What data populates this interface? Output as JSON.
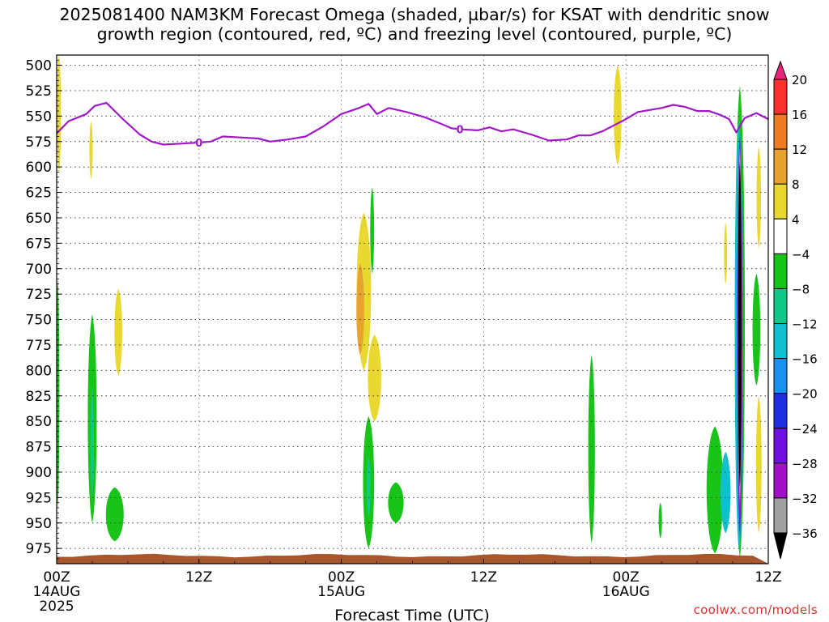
{
  "title_line1": "2025081400 NAM3KM Forecast Omega (shaded, µbar/s) for KSAT with dendritic snow",
  "title_line2": "growth region (contoured, red, ºC) and freezing level (contoured, purple, ºC)",
  "credit": "coolwx.com/models",
  "chart_data": {
    "type": "heatmap",
    "xlabel": "Forecast Time (UTC)",
    "x_unit": "forecast hour from 2025-08-14 00Z",
    "xlim": [
      0,
      60
    ],
    "x_ticks": [
      {
        "hour": 0,
        "label": "00Z",
        "sub1": "14AUG",
        "sub2": "2025"
      },
      {
        "hour": 12,
        "label": "12Z",
        "sub1": "",
        "sub2": ""
      },
      {
        "hour": 24,
        "label": "00Z",
        "sub1": "15AUG",
        "sub2": ""
      },
      {
        "hour": 36,
        "label": "12Z",
        "sub1": "",
        "sub2": ""
      },
      {
        "hour": 48,
        "label": "00Z",
        "sub1": "16AUG",
        "sub2": ""
      },
      {
        "hour": 60,
        "label": "12Z",
        "sub1": "",
        "sub2": ""
      }
    ],
    "y_unit": "hPa",
    "ylim": [
      990,
      490
    ],
    "y_ticks": [
      500,
      525,
      550,
      575,
      600,
      625,
      650,
      675,
      700,
      725,
      750,
      775,
      800,
      825,
      850,
      875,
      900,
      925,
      950,
      975
    ],
    "grid": true,
    "colorbar": {
      "labels": [
        20,
        16,
        12,
        8,
        4,
        -4,
        -8,
        -12,
        -16,
        -20,
        -24,
        -28,
        -32,
        -36
      ],
      "bins": [
        {
          "min": 20,
          "max": 24,
          "color": "#e8237b"
        },
        {
          "min": 16,
          "max": 20,
          "color": "#ff3030"
        },
        {
          "min": 12,
          "max": 16,
          "color": "#ee7a22"
        },
        {
          "min": 8,
          "max": 12,
          "color": "#e8a32e"
        },
        {
          "min": 4,
          "max": 8,
          "color": "#e8d830"
        },
        {
          "min": -4,
          "max": 4,
          "color": "#ffffff"
        },
        {
          "min": -8,
          "max": -4,
          "color": "#18c418"
        },
        {
          "min": -12,
          "max": -8,
          "color": "#10c888"
        },
        {
          "min": -16,
          "max": -12,
          "color": "#10c0d0"
        },
        {
          "min": -20,
          "max": -16,
          "color": "#1a90f0"
        },
        {
          "min": -24,
          "max": -20,
          "color": "#2030e0"
        },
        {
          "min": -28,
          "max": -24,
          "color": "#7010e0"
        },
        {
          "min": -32,
          "max": -28,
          "color": "#a010c8"
        },
        {
          "min": -36,
          "max": -32,
          "color": "#a0a0a0"
        },
        {
          "min": -40,
          "max": -36,
          "color": "#000000"
        }
      ]
    },
    "omega_regions": [
      {
        "value": 6,
        "t": 0.2,
        "p_top": 490,
        "p_bot": 605,
        "w": 0.35
      },
      {
        "value": 6,
        "t": 2.9,
        "p_top": 555,
        "p_bot": 612,
        "w": 0.3
      },
      {
        "value": 6,
        "t": 5.2,
        "p_top": 720,
        "p_bot": 805,
        "w": 0.7
      },
      {
        "value": -6,
        "t": 0.1,
        "p_top": 710,
        "p_bot": 935,
        "w": 0.25
      },
      {
        "value": -6,
        "t": 3.0,
        "p_top": 745,
        "p_bot": 950,
        "w": 0.8
      },
      {
        "value": -6,
        "t": 4.9,
        "p_top": 915,
        "p_bot": 968,
        "w": 1.6
      },
      {
        "value": -10,
        "t": 3.0,
        "p_top": 815,
        "p_bot": 925,
        "w": 0.3
      },
      {
        "value": 6,
        "t": 25.9,
        "p_top": 645,
        "p_bot": 800,
        "w": 1.3
      },
      {
        "value": 6,
        "t": 26.8,
        "p_top": 765,
        "p_bot": 850,
        "w": 1.2
      },
      {
        "value": 10,
        "t": 25.6,
        "p_top": 695,
        "p_bot": 785,
        "w": 0.7
      },
      {
        "value": -6,
        "t": 26.6,
        "p_top": 620,
        "p_bot": 705,
        "w": 0.35
      },
      {
        "value": -6,
        "t": 26.3,
        "p_top": 845,
        "p_bot": 975,
        "w": 1.0
      },
      {
        "value": -6,
        "t": 28.6,
        "p_top": 910,
        "p_bot": 950,
        "w": 1.4
      },
      {
        "value": -10,
        "t": 26.3,
        "p_top": 885,
        "p_bot": 945,
        "w": 0.35
      },
      {
        "value": 6,
        "t": 47.3,
        "p_top": 500,
        "p_bot": 598,
        "w": 0.7
      },
      {
        "value": -6,
        "t": 45.1,
        "p_top": 785,
        "p_bot": 970,
        "w": 0.6
      },
      {
        "value": -6,
        "t": 50.9,
        "p_top": 930,
        "p_bot": 965,
        "w": 0.3
      },
      {
        "value": -6,
        "t": 57.6,
        "p_top": 520,
        "p_bot": 985,
        "w": 0.9
      },
      {
        "value": -6,
        "t": 55.5,
        "p_top": 855,
        "p_bot": 980,
        "w": 1.5
      },
      {
        "value": -6,
        "t": 59.0,
        "p_top": 705,
        "p_bot": 815,
        "w": 0.7
      },
      {
        "value": 6,
        "t": 56.4,
        "p_top": 655,
        "p_bot": 715,
        "w": 0.25
      },
      {
        "value": 6,
        "t": 59.2,
        "p_top": 580,
        "p_bot": 680,
        "w": 0.4
      },
      {
        "value": 6,
        "t": 59.2,
        "p_top": 825,
        "p_bot": 960,
        "w": 0.5
      },
      {
        "value": -14,
        "t": 57.5,
        "p_top": 555,
        "p_bot": 975,
        "w": 0.7
      },
      {
        "value": -14,
        "t": 56.4,
        "p_top": 880,
        "p_bot": 960,
        "w": 0.9
      },
      {
        "value": -18,
        "t": 57.6,
        "p_top": 565,
        "p_bot": 970,
        "w": 0.55
      },
      {
        "value": -26,
        "t": 57.6,
        "p_top": 570,
        "p_bot": 960,
        "w": 0.5
      },
      {
        "value": -30,
        "t": 57.6,
        "p_top": 575,
        "p_bot": 955,
        "w": 0.45
      },
      {
        "value": -34,
        "t": 57.6,
        "p_top": 580,
        "p_bot": 930,
        "w": 0.4
      },
      {
        "value": -38,
        "t": 57.6,
        "p_top": 595,
        "p_bot": 915,
        "w": 0.33
      }
    ],
    "freezing_level": {
      "label": "0",
      "label_points": [
        {
          "t": 12.0,
          "p": 576
        },
        {
          "t": 34.0,
          "p": 563
        }
      ],
      "points": [
        {
          "t": 0,
          "p": 567
        },
        {
          "t": 1,
          "p": 555
        },
        {
          "t": 2.5,
          "p": 548
        },
        {
          "t": 3.2,
          "p": 540
        },
        {
          "t": 4.2,
          "p": 537
        },
        {
          "t": 5.5,
          "p": 552
        },
        {
          "t": 7,
          "p": 568
        },
        {
          "t": 8,
          "p": 575
        },
        {
          "t": 9,
          "p": 578
        },
        {
          "t": 10.5,
          "p": 577
        },
        {
          "t": 12,
          "p": 576
        },
        {
          "t": 13,
          "p": 575
        },
        {
          "t": 14,
          "p": 570
        },
        {
          "t": 15.5,
          "p": 571
        },
        {
          "t": 17,
          "p": 572
        },
        {
          "t": 18,
          "p": 575
        },
        {
          "t": 19.5,
          "p": 573
        },
        {
          "t": 21,
          "p": 570
        },
        {
          "t": 22.5,
          "p": 560
        },
        {
          "t": 24,
          "p": 548
        },
        {
          "t": 25.5,
          "p": 542
        },
        {
          "t": 26.3,
          "p": 538
        },
        {
          "t": 27.0,
          "p": 548
        },
        {
          "t": 28,
          "p": 542
        },
        {
          "t": 29.5,
          "p": 546
        },
        {
          "t": 31,
          "p": 551
        },
        {
          "t": 32.5,
          "p": 558
        },
        {
          "t": 33.3,
          "p": 562
        },
        {
          "t": 34,
          "p": 563
        },
        {
          "t": 35.5,
          "p": 564
        },
        {
          "t": 36.5,
          "p": 561
        },
        {
          "t": 37.5,
          "p": 565
        },
        {
          "t": 38.5,
          "p": 563
        },
        {
          "t": 40,
          "p": 568
        },
        {
          "t": 41.5,
          "p": 574
        },
        {
          "t": 43,
          "p": 573
        },
        {
          "t": 44,
          "p": 569
        },
        {
          "t": 45,
          "p": 569
        },
        {
          "t": 46,
          "p": 565
        },
        {
          "t": 47,
          "p": 559
        },
        {
          "t": 48,
          "p": 553
        },
        {
          "t": 49,
          "p": 546
        },
        {
          "t": 50,
          "p": 544
        },
        {
          "t": 51,
          "p": 542
        },
        {
          "t": 52,
          "p": 539
        },
        {
          "t": 53,
          "p": 541
        },
        {
          "t": 54,
          "p": 545
        },
        {
          "t": 55,
          "p": 545
        },
        {
          "t": 56,
          "p": 549
        },
        {
          "t": 56.7,
          "p": 553
        },
        {
          "t": 57.3,
          "p": 566
        },
        {
          "t": 58,
          "p": 552
        },
        {
          "t": 59,
          "p": 547
        },
        {
          "t": 60,
          "p": 553
        }
      ]
    },
    "terrain": {
      "color": "#a8562e",
      "p_top": 982,
      "p_bottom": 990
    }
  }
}
